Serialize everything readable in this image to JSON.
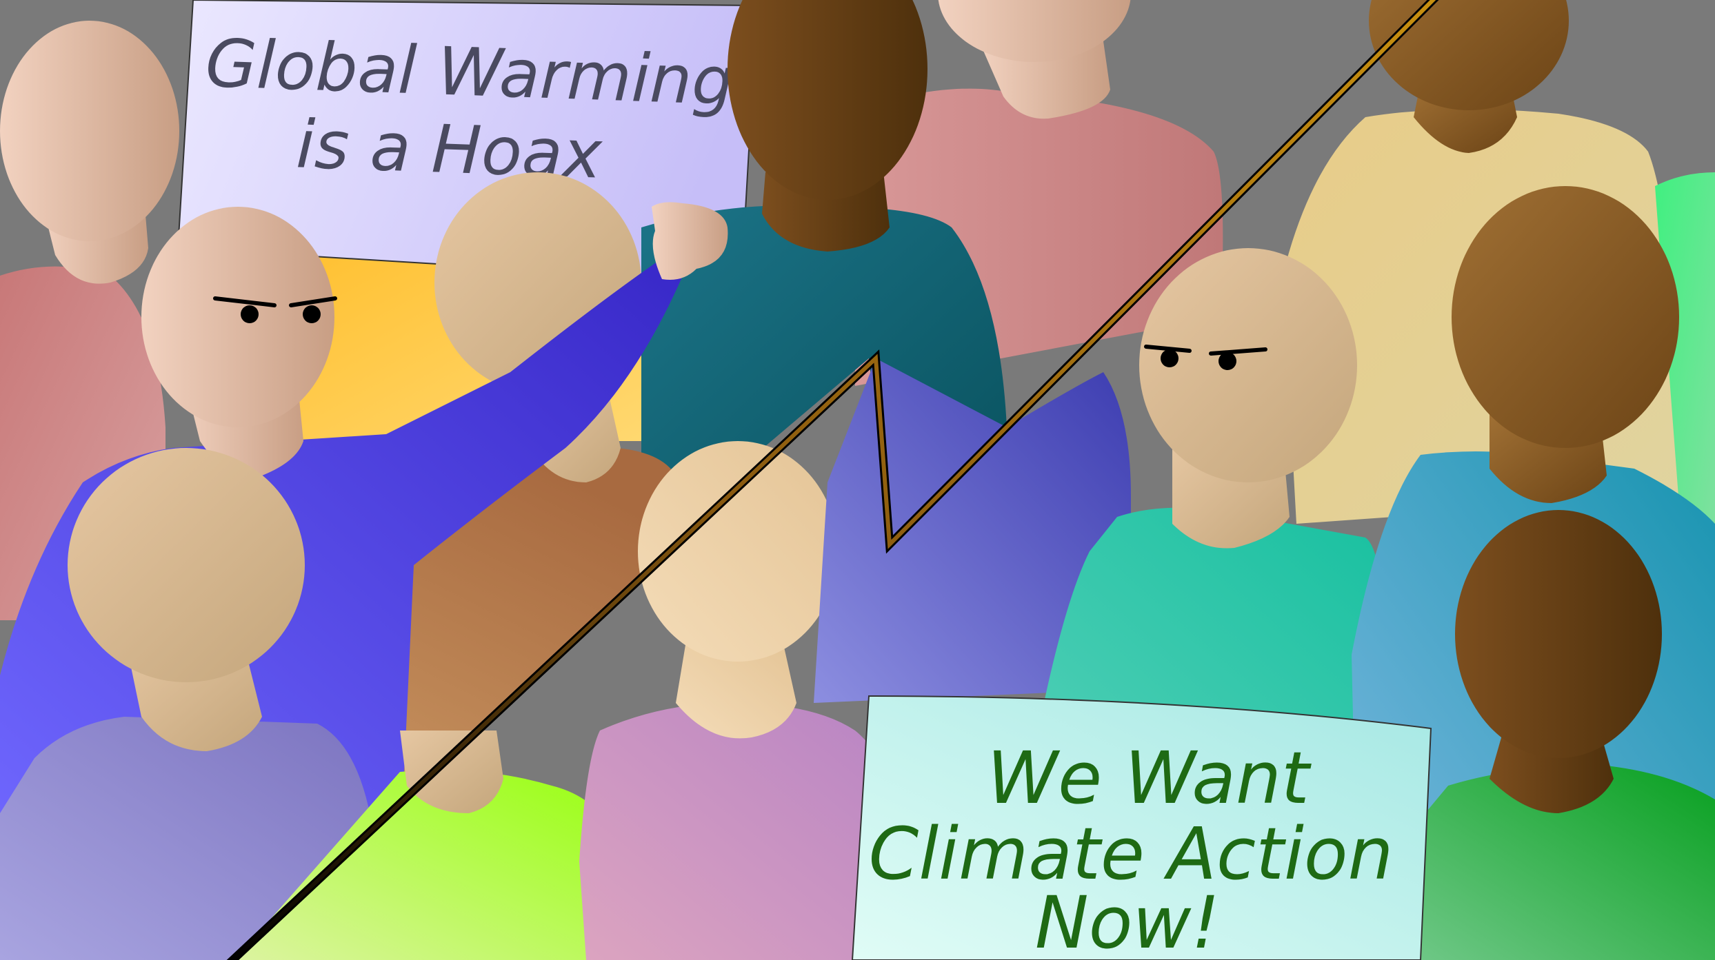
{
  "illustration": {
    "background_color": "#7a7a7a",
    "sign_left": {
      "line1": "Global Warming",
      "line2": "is a Hoax",
      "text_color": "#4a4a60",
      "board_color_top": "#e8e6ff",
      "board_color_bottom": "#c8c0f8"
    },
    "sign_right": {
      "line1": "We Want",
      "line2": "Climate Action",
      "line3": "Now!",
      "text_color": "#1e6a14",
      "board_color_top": "#dcfaf4",
      "board_color_bottom": "#a8eae6"
    },
    "divider_colors": [
      "#000000",
      "#b8860b"
    ]
  }
}
